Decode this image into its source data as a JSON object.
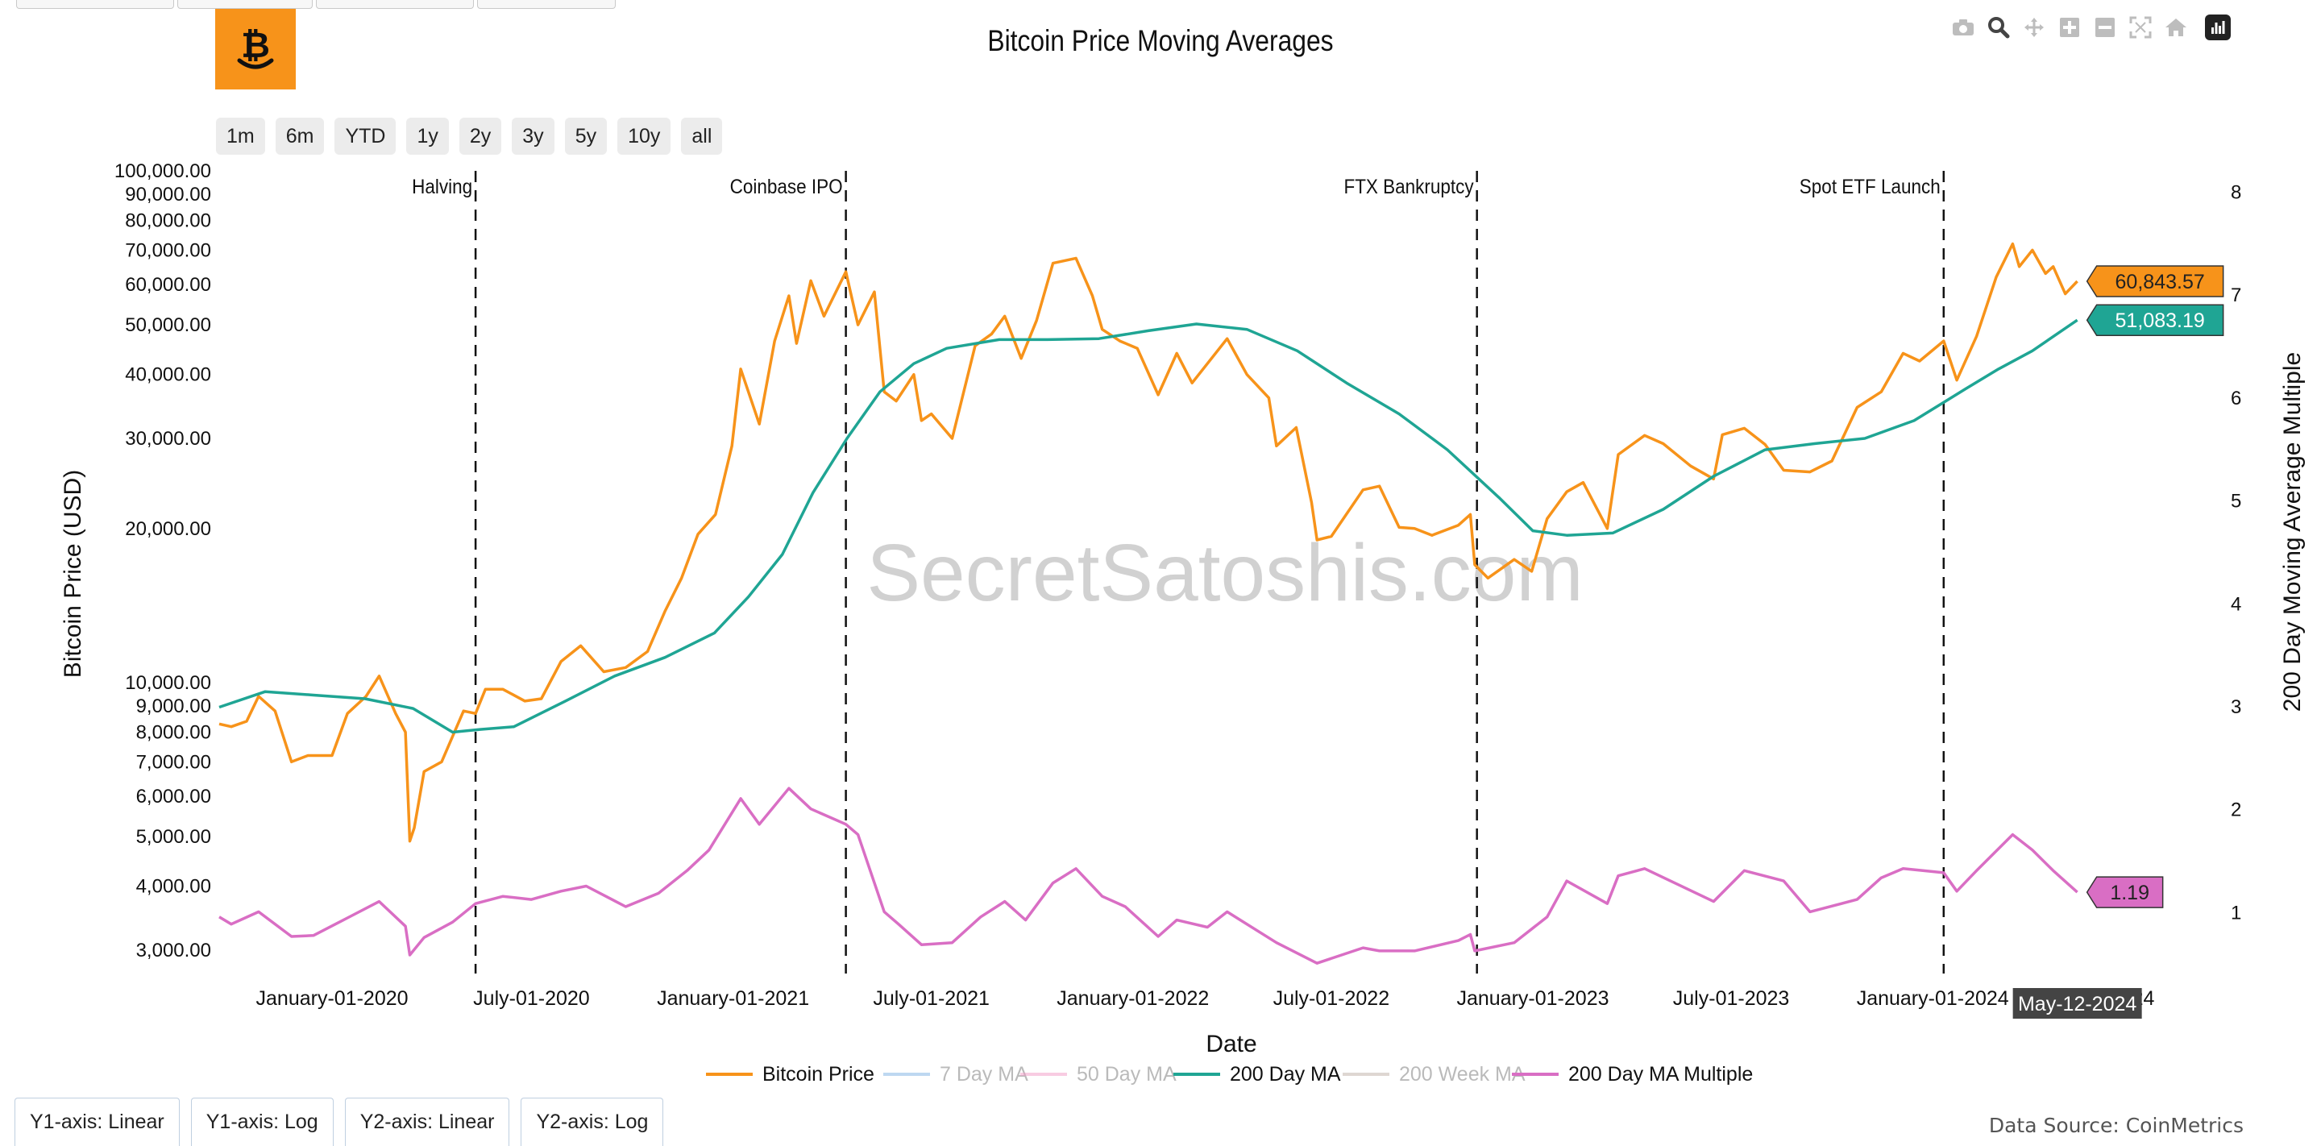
{
  "title": "Bitcoin Price Moving Averages",
  "logo": {
    "symbol": "₿",
    "color": "#f7931a"
  },
  "range_buttons": [
    "1m",
    "6m",
    "YTD",
    "1y",
    "2y",
    "3y",
    "5y",
    "10y",
    "all"
  ],
  "axis_buttons": [
    "Y1-axis: Linear",
    "Y1-axis: Log",
    "Y2-axis: Linear",
    "Y2-axis: Log"
  ],
  "modebar_icons": [
    "camera-icon",
    "zoom-icon",
    "pan-icon",
    "zoom-in-icon",
    "zoom-out-icon",
    "autoscale-icon",
    "reset-axes-icon",
    "plotly-logo-icon"
  ],
  "watermark": "SecretSatoshis.com",
  "data_source": "Data Source: CoinMetrics",
  "hover_date": "May-12-2024",
  "chart_data": {
    "type": "line",
    "title": "Bitcoin Price Moving Averages",
    "xlabel": "Date",
    "ylabel": "Bitcoin Price (USD)",
    "y2label": "200 Day Moving Average Multiple",
    "y_scale": "log",
    "ylim": [
      2700,
      100000
    ],
    "y2lim": [
      0.4,
      8.2
    ],
    "xlim": [
      "2019-09-20",
      "2024-08-10"
    ],
    "grid": false,
    "legend_position": "bottom",
    "x_ticks": [
      "January-01-2020",
      "July-01-2020",
      "January-01-2021",
      "July-01-2021",
      "January-01-2022",
      "July-01-2022",
      "January-01-2023",
      "July-01-2023",
      "January-01-2024",
      "2024"
    ],
    "x_tick_dates": [
      "2020-01-01",
      "2020-07-01",
      "2021-01-01",
      "2021-07-01",
      "2022-01-01",
      "2022-07-01",
      "2023-01-01",
      "2023-07-01",
      "2024-01-01",
      "2024-07-01"
    ],
    "y_ticks": [
      3000,
      4000,
      5000,
      6000,
      7000,
      8000,
      9000,
      10000,
      20000,
      30000,
      40000,
      50000,
      60000,
      70000,
      80000,
      90000,
      100000
    ],
    "y_tick_labels": [
      "3,000.00",
      "4,000.00",
      "5,000.00",
      "6,000.00",
      "7,000.00",
      "8,000.00",
      "9,000.00",
      "10,000.00",
      "20,000.00",
      "30,000.00",
      "40,000.00",
      "50,000.00",
      "60,000.00",
      "70,000.00",
      "80,000.00",
      "90,000.00",
      "100,000.00"
    ],
    "y2_ticks": [
      1,
      2,
      3,
      4,
      5,
      6,
      7,
      8
    ],
    "y2_tick_labels": [
      "1",
      "2",
      "3",
      "4",
      "5",
      "6",
      "7",
      "8"
    ],
    "events": [
      {
        "label": "Halving",
        "date": "2020-05-11"
      },
      {
        "label": "Coinbase IPO",
        "date": "2021-04-14"
      },
      {
        "label": "FTX Bankruptcy",
        "date": "2022-11-11"
      },
      {
        "label": "Spot ETF Launch",
        "date": "2024-01-11"
      }
    ],
    "legend": [
      {
        "name": "Bitcoin Price",
        "color": "#f7931a",
        "visible": true
      },
      {
        "name": "7 Day MA",
        "color": "#7fb2e5",
        "visible": false
      },
      {
        "name": "50 Day MA",
        "color": "#f29ac6",
        "visible": false
      },
      {
        "name": "200 Day MA",
        "color": "#1fa594",
        "visible": true
      },
      {
        "name": "200 Week MA",
        "color": "#bfb0a6",
        "visible": false
      },
      {
        "name": "200 Day MA Multiple",
        "color": "#d96ec4",
        "visible": true
      }
    ],
    "series": [
      {
        "name": "Bitcoin Price",
        "axis": "y",
        "color": "#f7931a",
        "x": [
          "2019-09-20",
          "2019-10-01",
          "2019-10-15",
          "2019-10-26",
          "2019-11-10",
          "2019-11-25",
          "2019-12-10",
          "2019-12-20",
          "2020-01-01",
          "2020-01-15",
          "2020-02-01",
          "2020-02-13",
          "2020-02-28",
          "2020-03-08",
          "2020-03-12",
          "2020-03-16",
          "2020-03-25",
          "2020-04-10",
          "2020-04-30",
          "2020-05-11",
          "2020-05-20",
          "2020-06-05",
          "2020-06-25",
          "2020-07-10",
          "2020-07-28",
          "2020-08-15",
          "2020-09-05",
          "2020-09-25",
          "2020-10-15",
          "2020-10-31",
          "2020-11-15",
          "2020-11-30",
          "2020-12-16",
          "2020-12-31",
          "2021-01-08",
          "2021-01-25",
          "2021-02-08",
          "2021-02-21",
          "2021-02-28",
          "2021-03-13",
          "2021-03-25",
          "2021-04-14",
          "2021-04-25",
          "2021-05-10",
          "2021-05-19",
          "2021-05-30",
          "2021-06-15",
          "2021-06-22",
          "2021-07-01",
          "2021-07-20",
          "2021-08-10",
          "2021-08-25",
          "2021-09-06",
          "2021-09-21",
          "2021-10-05",
          "2021-10-20",
          "2021-11-10",
          "2021-11-25",
          "2021-12-04",
          "2021-12-20",
          "2022-01-05",
          "2022-01-24",
          "2022-02-10",
          "2022-02-24",
          "2022-03-28",
          "2022-04-15",
          "2022-05-05",
          "2022-05-12",
          "2022-05-30",
          "2022-06-13",
          "2022-06-18",
          "2022-07-01",
          "2022-07-30",
          "2022-08-14",
          "2022-09-01",
          "2022-09-15",
          "2022-10-01",
          "2022-10-25",
          "2022-11-05",
          "2022-11-09",
          "2022-11-21",
          "2022-12-15",
          "2022-12-31",
          "2023-01-14",
          "2023-02-01",
          "2023-02-16",
          "2023-03-10",
          "2023-03-20",
          "2023-04-13",
          "2023-04-30",
          "2023-05-25",
          "2023-06-15",
          "2023-06-23",
          "2023-07-13",
          "2023-08-01",
          "2023-08-18",
          "2023-09-11",
          "2023-10-01",
          "2023-10-24",
          "2023-11-15",
          "2023-12-05",
          "2023-12-20",
          "2024-01-11",
          "2024-01-23",
          "2024-02-10",
          "2024-02-28",
          "2024-03-14",
          "2024-03-20",
          "2024-04-01",
          "2024-04-13",
          "2024-04-20",
          "2024-05-01",
          "2024-05-12"
        ],
        "values": [
          8300,
          8200,
          8400,
          9400,
          8800,
          7000,
          7200,
          7200,
          7200,
          8700,
          9400,
          10300,
          8700,
          8000,
          4900,
          5200,
          6700,
          7000,
          8800,
          8700,
          9700,
          9700,
          9200,
          9300,
          11000,
          11800,
          10500,
          10700,
          11500,
          13800,
          16000,
          19500,
          21300,
          29000,
          41000,
          32000,
          46500,
          57000,
          46000,
          61000,
          52000,
          63500,
          50000,
          58000,
          37000,
          35500,
          40000,
          32500,
          33500,
          30000,
          45500,
          48000,
          52000,
          43000,
          51000,
          66000,
          67500,
          57000,
          49000,
          46500,
          45000,
          36500,
          44000,
          38500,
          47000,
          40000,
          36000,
          29000,
          31500,
          22500,
          19000,
          19300,
          23800,
          24200,
          20100,
          20000,
          19400,
          20300,
          21300,
          17000,
          16000,
          17400,
          16500,
          20900,
          23600,
          24600,
          20000,
          27900,
          30400,
          29300,
          26500,
          25000,
          30500,
          31400,
          29200,
          26000,
          25800,
          27100,
          34500,
          37000,
          44000,
          42500,
          46500,
          39000,
          47500,
          62000,
          72000,
          65000,
          70000,
          63000,
          65000,
          57500,
          60843.57
        ]
      },
      {
        "name": "200 Day MA",
        "axis": "y",
        "color": "#1fa594",
        "x": [
          "2019-09-20",
          "2019-11-01",
          "2019-12-15",
          "2020-01-31",
          "2020-03-15",
          "2020-04-20",
          "2020-05-15",
          "2020-06-15",
          "2020-08-01",
          "2020-09-15",
          "2020-10-31",
          "2020-12-15",
          "2021-01-15",
          "2021-02-15",
          "2021-03-15",
          "2021-04-15",
          "2021-05-15",
          "2021-06-15",
          "2021-07-15",
          "2021-09-01",
          "2021-10-15",
          "2021-12-01",
          "2022-01-15",
          "2022-02-28",
          "2022-04-15",
          "2022-05-31",
          "2022-07-15",
          "2022-09-01",
          "2022-10-15",
          "2022-12-01",
          "2023-01-01",
          "2023-02-01",
          "2023-03-15",
          "2023-04-30",
          "2023-06-15",
          "2023-08-01",
          "2023-09-15",
          "2023-10-31",
          "2023-12-15",
          "2024-01-31",
          "2024-03-01",
          "2024-04-01",
          "2024-05-12"
        ],
        "values": [
          8950,
          9600,
          9450,
          9300,
          8900,
          8000,
          8100,
          8200,
          9200,
          10300,
          11200,
          12500,
          14700,
          17800,
          23500,
          30000,
          37000,
          42000,
          45000,
          46800,
          46800,
          47000,
          48700,
          50200,
          49000,
          44500,
          38500,
          33500,
          28500,
          23000,
          19800,
          19400,
          19600,
          21800,
          25300,
          28500,
          29300,
          30000,
          32500,
          37500,
          41000,
          44500,
          51083.19
        ]
      },
      {
        "name": "200 Day MA Multiple",
        "axis": "y2",
        "color": "#d96ec4",
        "x": [
          "2019-09-20",
          "2019-10-01",
          "2019-10-26",
          "2019-11-25",
          "2019-12-15",
          "2020-01-15",
          "2020-02-13",
          "2020-03-08",
          "2020-03-12",
          "2020-03-25",
          "2020-04-20",
          "2020-05-11",
          "2020-06-05",
          "2020-07-01",
          "2020-07-28",
          "2020-08-20",
          "2020-09-25",
          "2020-10-25",
          "2020-11-20",
          "2020-12-10",
          "2021-01-08",
          "2021-01-25",
          "2021-02-21",
          "2021-03-13",
          "2021-04-14",
          "2021-04-25",
          "2021-05-19",
          "2021-06-01",
          "2021-06-22",
          "2021-07-20",
          "2021-08-15",
          "2021-09-06",
          "2021-09-25",
          "2021-10-20",
          "2021-11-10",
          "2021-12-04",
          "2021-12-25",
          "2022-01-24",
          "2022-02-10",
          "2022-03-10",
          "2022-03-28",
          "2022-05-12",
          "2022-06-18",
          "2022-07-30",
          "2022-08-14",
          "2022-09-15",
          "2022-10-25",
          "2022-11-05",
          "2022-11-09",
          "2022-12-15",
          "2023-01-14",
          "2023-02-01",
          "2023-03-10",
          "2023-03-20",
          "2023-04-13",
          "2023-06-15",
          "2023-07-13",
          "2023-08-18",
          "2023-09-11",
          "2023-10-24",
          "2023-11-15",
          "2023-12-05",
          "2024-01-11",
          "2024-01-23",
          "2024-02-10",
          "2024-03-14",
          "2024-04-01",
          "2024-04-20",
          "2024-05-12"
        ],
        "values": [
          0.95,
          0.88,
          1.0,
          0.76,
          0.77,
          0.94,
          1.1,
          0.86,
          0.58,
          0.75,
          0.9,
          1.08,
          1.15,
          1.12,
          1.2,
          1.25,
          1.05,
          1.18,
          1.4,
          1.6,
          2.1,
          1.85,
          2.2,
          2.0,
          1.85,
          1.75,
          1.0,
          0.88,
          0.68,
          0.7,
          0.95,
          1.1,
          0.92,
          1.28,
          1.42,
          1.15,
          1.05,
          0.76,
          0.92,
          0.85,
          1.0,
          0.7,
          0.5,
          0.65,
          0.62,
          0.62,
          0.72,
          0.78,
          0.62,
          0.7,
          0.95,
          1.3,
          1.08,
          1.35,
          1.42,
          1.1,
          1.4,
          1.3,
          1.0,
          1.12,
          1.33,
          1.42,
          1.38,
          1.2,
          1.4,
          1.75,
          1.6,
          1.4,
          1.19
        ]
      }
    ],
    "last_labels": [
      {
        "series": "Bitcoin Price",
        "text": "60,843.57",
        "color": "#f7931a"
      },
      {
        "series": "200 Day MA",
        "text": "51,083.19",
        "color": "#1fa594"
      },
      {
        "series": "200 Day MA Multiple",
        "text": "1.19",
        "color": "#d96ec4"
      }
    ]
  }
}
